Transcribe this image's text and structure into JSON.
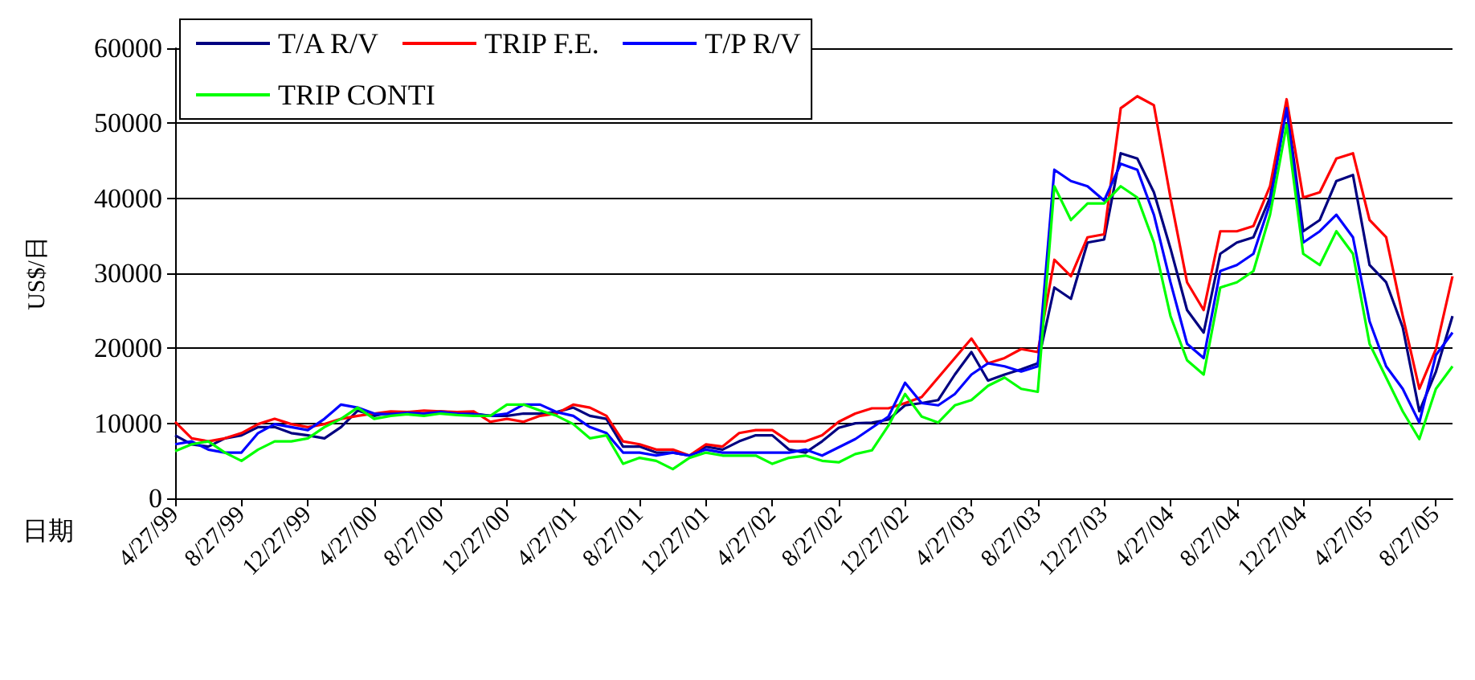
{
  "chart_data": {
    "type": "line",
    "xlabel": "日期",
    "ylabel": "US$/日",
    "categories": [
      "4/27/99",
      null,
      null,
      null,
      "8/27/99",
      null,
      null,
      null,
      "12/27/99",
      null,
      null,
      null,
      "4/27/00",
      null,
      null,
      null,
      "8/27/00",
      null,
      null,
      null,
      "12/27/00",
      null,
      null,
      null,
      "4/27/01",
      null,
      null,
      null,
      "8/27/01",
      null,
      null,
      null,
      "12/27/01",
      null,
      null,
      null,
      "4/27/02",
      null,
      null,
      null,
      "8/27/02",
      null,
      null,
      null,
      "12/27/02",
      null,
      null,
      null,
      "4/27/03",
      null,
      null,
      null,
      "8/27/03",
      null,
      null,
      null,
      "12/27/03",
      null,
      null,
      null,
      "4/27/04",
      null,
      null,
      null,
      "8/27/04",
      null,
      null,
      null,
      "12/27/04",
      null,
      null,
      null,
      "4/27/05",
      null,
      null,
      null,
      "8/27/05",
      null
    ],
    "series": [
      {
        "name": "T/A R/V",
        "color": "#000080",
        "values": [
          8400,
          7200,
          6900,
          8000,
          8400,
          9500,
          9500,
          8700,
          8400,
          8000,
          9500,
          11700,
          11000,
          11500,
          11200,
          11300,
          11600,
          11400,
          11300,
          11000,
          11000,
          11300,
          11300,
          11500,
          12100,
          11000,
          10600,
          6900,
          6900,
          6100,
          6100,
          5700,
          6900,
          6500,
          7600,
          8400,
          8400,
          6500,
          6100,
          7600,
          9400,
          10000,
          10100,
          10500,
          12400,
          12700,
          13100,
          16500,
          19500,
          15700,
          16500,
          17200,
          18000,
          28100,
          26600,
          34100,
          34500,
          46000,
          45300,
          40800,
          33300,
          25100,
          22100,
          32600,
          34100,
          34800,
          40100,
          52400,
          35600,
          37100,
          42300,
          43100,
          31100,
          28800,
          22800,
          11600,
          16900,
          24300
        ]
      },
      {
        "name": "TRIP F.E.",
        "color": "#ff0000",
        "values": [
          10200,
          8000,
          7600,
          8000,
          8700,
          9900,
          10600,
          9900,
          9500,
          9900,
          10600,
          11000,
          11300,
          11600,
          11500,
          11700,
          11600,
          11500,
          11600,
          10200,
          10600,
          10200,
          11000,
          11300,
          12500,
          12100,
          11000,
          7600,
          7200,
          6500,
          6500,
          5700,
          7200,
          6900,
          8700,
          9100,
          9100,
          7600,
          7600,
          8400,
          10200,
          11300,
          12000,
          12000,
          12700,
          13500,
          16100,
          18700,
          21300,
          18000,
          18700,
          19900,
          19500,
          31800,
          29600,
          34800,
          35200,
          52000,
          53600,
          52400,
          40100,
          28800,
          25100,
          35600,
          35600,
          36300,
          41600,
          53200,
          40100,
          40800,
          45300,
          46000,
          37100,
          34800,
          24300,
          14600,
          19900,
          29600
        ]
      },
      {
        "name": "T/P R/V",
        "color": "#0000ff",
        "values": [
          7200,
          7600,
          6500,
          6100,
          6100,
          8700,
          9900,
          9500,
          9100,
          10600,
          12500,
          12100,
          11300,
          11200,
          11400,
          11300,
          11500,
          11300,
          11200,
          11000,
          11300,
          12500,
          12500,
          11500,
          11000,
          9500,
          8700,
          6100,
          6100,
          5700,
          6100,
          5700,
          6500,
          6100,
          6100,
          6100,
          6100,
          6100,
          6500,
          5700,
          6800,
          7900,
          9400,
          10900,
          15400,
          12700,
          12400,
          13900,
          16500,
          18000,
          17600,
          16900,
          17600,
          43800,
          42300,
          41600,
          39700,
          44600,
          43800,
          37800,
          28800,
          20600,
          18700,
          30300,
          31100,
          32600,
          39300,
          52000,
          34100,
          35600,
          37800,
          34800,
          23600,
          17600,
          14600,
          10100,
          19100,
          22100
        ]
      },
      {
        "name": "TRIP CONTI",
        "color": "#00ff00",
        "values": [
          6300,
          7200,
          7600,
          6100,
          5000,
          6500,
          7600,
          7600,
          8000,
          9500,
          10600,
          12100,
          10600,
          11000,
          11200,
          11000,
          11300,
          11100,
          11000,
          11000,
          12500,
          12500,
          11700,
          11000,
          9900,
          8000,
          8400,
          4600,
          5400,
          5000,
          3900,
          5400,
          6100,
          5700,
          5700,
          5700,
          4600,
          5400,
          5700,
          5000,
          4800,
          5900,
          6400,
          9700,
          13900,
          10900,
          10100,
          12400,
          13100,
          15000,
          16100,
          14600,
          14200,
          41600,
          37100,
          39300,
          39300,
          41600,
          40100,
          34100,
          24300,
          18400,
          16500,
          28100,
          28800,
          30300,
          37800,
          49800,
          32600,
          31100,
          35600,
          32600,
          20600,
          16100,
          11600,
          7900,
          14600,
          17600
        ]
      }
    ],
    "ylim": [
      0,
      60000
    ],
    "yticks": [
      0,
      10000,
      20000,
      30000,
      40000,
      50000,
      60000
    ],
    "grid": "y",
    "legend": "top left",
    "marker": "none",
    "line_style": "solid"
  }
}
